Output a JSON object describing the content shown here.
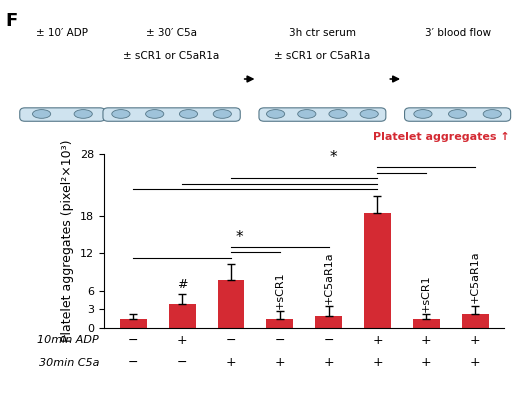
{
  "panel": "F",
  "schematic": {
    "steps": [
      [
        "± 10′ ADP"
      ],
      [
        "± 30′ C5a",
        "± sCR1 or C5aR1a"
      ],
      [
        "3h ctr serum",
        "± sCR1 or C5aR1a"
      ],
      [
        "3′ blood flow"
      ]
    ],
    "result": "Platelet aggregates ↑"
  },
  "chart_data": {
    "type": "bar",
    "y_label": "Platelet aggregates (pixel²×10³)",
    "categories": [
      null,
      null,
      null,
      null,
      null,
      null,
      null,
      null
    ],
    "values": [
      1.5,
      3.9,
      7.7,
      1.5,
      1.9,
      18.5,
      1.4,
      2.2
    ],
    "error": [
      0.7,
      1.6,
      2.6,
      1.2,
      1.6,
      2.8,
      0.8,
      1.4
    ],
    "color": "#d42a33",
    "bar_labels": [
      null,
      "#",
      null,
      "+sCR1",
      "+C5aR1a",
      null,
      "+sCR1",
      "+C5aR1a"
    ],
    "conditions": [
      {
        "label": "10min ADP",
        "values": [
          "−",
          "+",
          "−",
          "−",
          "−",
          "+",
          "+",
          "+"
        ]
      },
      {
        "label": "30min C5a",
        "values": [
          "−",
          "−",
          "+",
          "+",
          "+",
          "+",
          "+",
          "+"
        ]
      }
    ],
    "significance": [
      {
        "label": "*",
        "pairs": [
          [
            0,
            2
          ],
          [
            2,
            3
          ],
          [
            2,
            4
          ]
        ]
      },
      {
        "label": "*",
        "pairs": [
          [
            0,
            5
          ],
          [
            1,
            5
          ],
          [
            2,
            5
          ],
          [
            5,
            6
          ],
          [
            5,
            7
          ]
        ]
      }
    ],
    "ylim": [
      0,
      28
    ],
    "yticks": [
      0,
      3,
      6,
      12,
      18,
      28
    ],
    "grid": false
  }
}
